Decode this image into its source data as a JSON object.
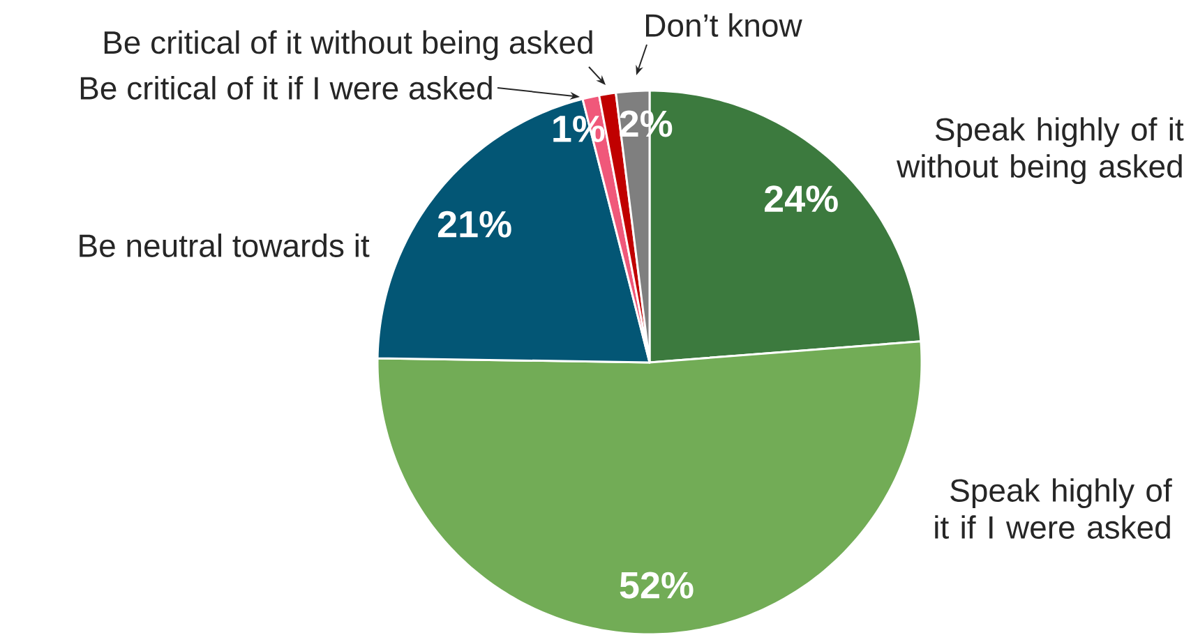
{
  "chart_data": {
    "type": "pie",
    "categories": [
      "Speak highly of it without being asked",
      "Speak highly of it if I were asked",
      "Be neutral towards it",
      "Be critical of it if I were asked",
      "Be critical of it without being asked",
      "Don’t know"
    ],
    "values": [
      24,
      52,
      21,
      1,
      1,
      2
    ],
    "colors": [
      "#3c7a3e",
      "#72ac56",
      "#035675",
      "#f0587a",
      "#c00000",
      "#7f7f7f"
    ],
    "value_labels": [
      "24%",
      "52%",
      "21%",
      "1%",
      null,
      "2%"
    ]
  }
}
